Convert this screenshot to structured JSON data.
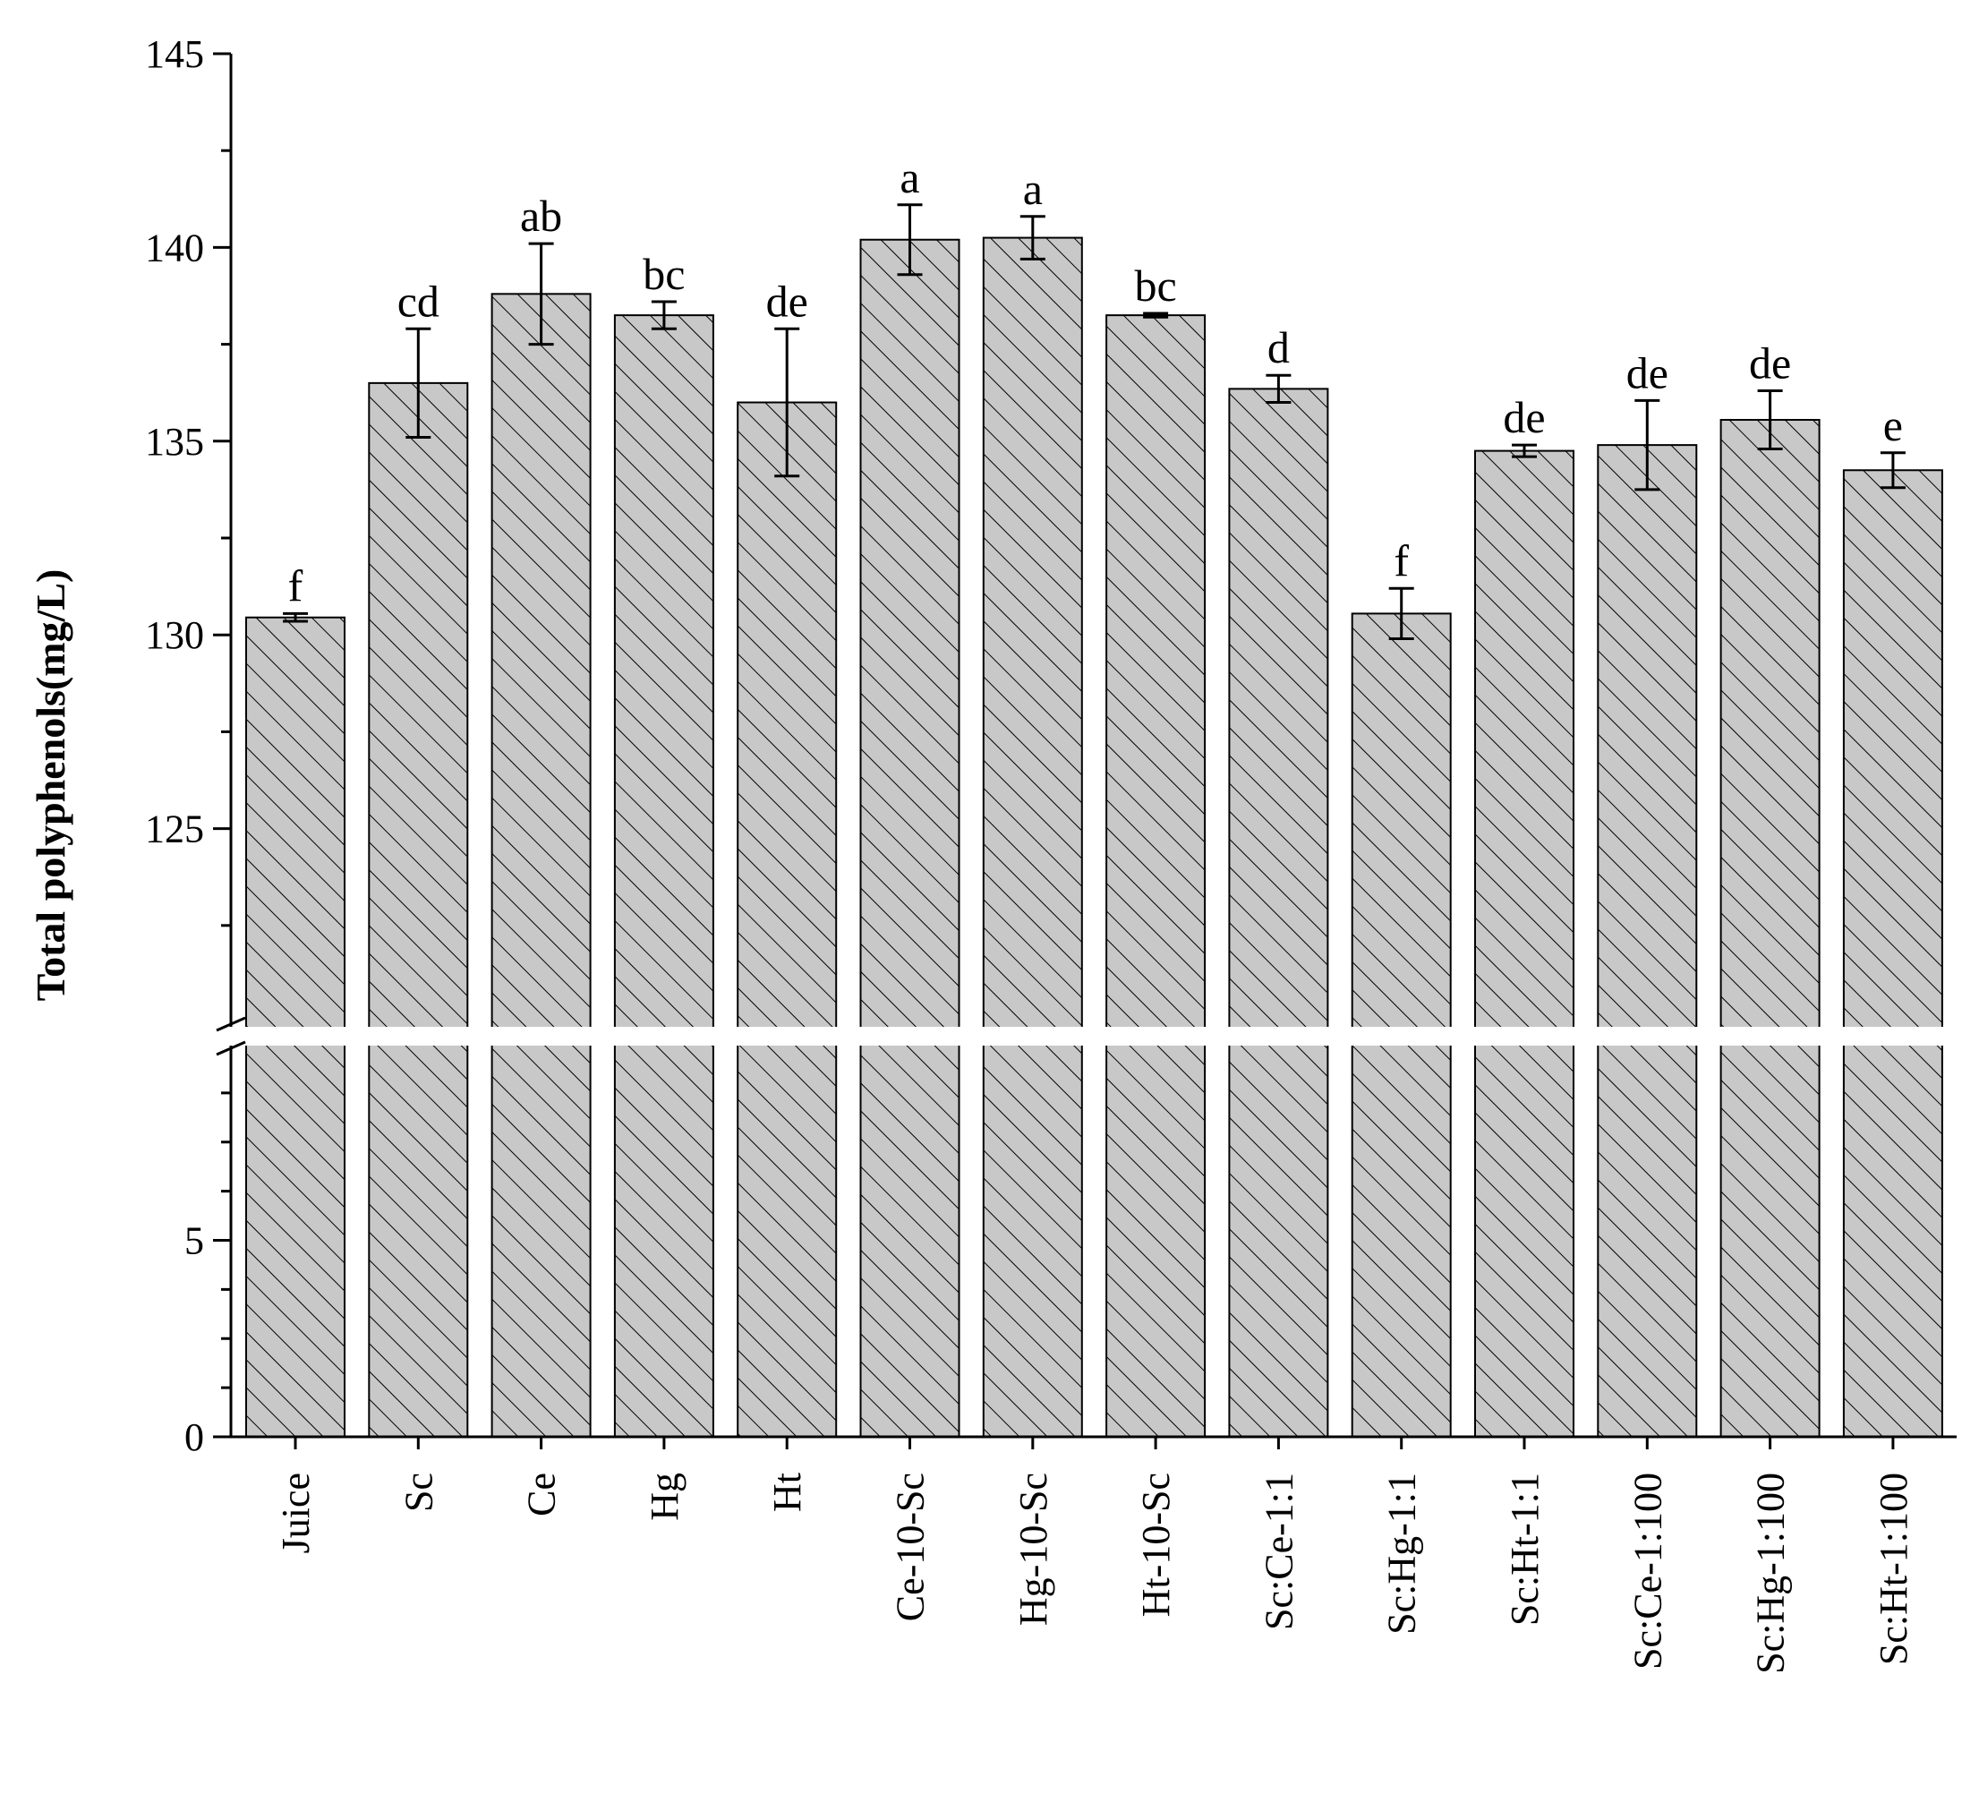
{
  "chart_data": {
    "type": "bar",
    "title": "",
    "xlabel": "",
    "ylabel": "Total polyphenols(mg/L)",
    "axis_break": {
      "lower_range": [
        0,
        10
      ],
      "upper_range": [
        120,
        145
      ]
    },
    "lower_ticks": [
      0,
      5
    ],
    "upper_ticks": [
      125,
      130,
      135,
      140,
      145
    ],
    "categories": [
      "Juice",
      "Sc",
      "Ce",
      "Hg",
      "Ht",
      "Ce-10-Sc",
      "Hg-10-Sc",
      "Ht-10-Sc",
      "Sc:Ce-1:1",
      "Sc:Hg-1:1",
      "Sc:Ht-1:1",
      "Sc:Ce-1:100",
      "Sc:Hg-1:100",
      "Sc:Ht-1:100"
    ],
    "values": [
      130.45,
      136.5,
      138.8,
      138.25,
      136.0,
      140.2,
      140.25,
      138.25,
      136.35,
      130.55,
      134.75,
      134.9,
      135.55,
      134.25
    ],
    "errors": [
      0.1,
      1.4,
      1.3,
      0.35,
      1.9,
      0.9,
      0.55,
      0.05,
      0.35,
      0.65,
      0.15,
      1.15,
      0.75,
      0.45
    ],
    "significance": [
      "f",
      "cd",
      "ab",
      "bc",
      "de",
      "a",
      "a",
      "bc",
      "d",
      "f",
      "de",
      "de",
      "de",
      "e"
    ],
    "bar_fill": "#c8c8c8",
    "hatch": "diagonal",
    "grid": false,
    "legend": "none"
  }
}
